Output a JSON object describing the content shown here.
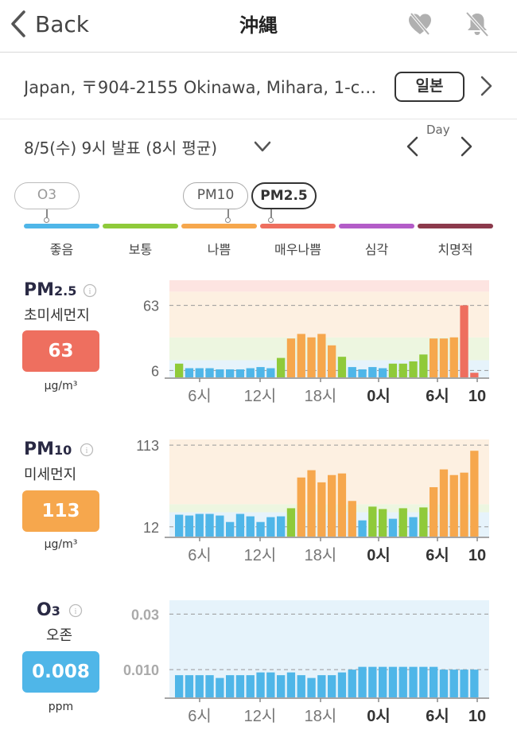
{
  "nav": {
    "back_label": "Back",
    "title": "沖縄",
    "favorite_icon": "heart-slash-icon",
    "notify_icon": "bell-slash-icon"
  },
  "address": {
    "text": "Japan, 〒904-2155 Okinawa, Mihara, 1-c…",
    "country_button": "일본"
  },
  "date": {
    "text": "8/5(수) 9시 발표 (8시 평균)",
    "mode": "Day"
  },
  "scale": {
    "pills": [
      "O3",
      "PM10",
      "PM2.5"
    ],
    "selected": "PM2.5",
    "levels": [
      {
        "label": "좋음",
        "color": "#4fb6e8"
      },
      {
        "label": "보통",
        "color": "#8fca3a"
      },
      {
        "label": "나쁨",
        "color": "#f6a74d"
      },
      {
        "label": "매우나쁨",
        "color": "#ee6f5f"
      },
      {
        "label": "심각",
        "color": "#b35cc8"
      },
      {
        "label": "치명적",
        "color": "#8c3a4c"
      }
    ]
  },
  "sections": [
    {
      "name": "PM",
      "name_sub": "2.5",
      "desc": "초미세먼지",
      "value": "63",
      "unit": "μg/m³",
      "badge_color": "#ee6f5f"
    },
    {
      "name": "PM",
      "name_sub": "10",
      "desc": "미세먼지",
      "value": "113",
      "unit": "μg/m³",
      "badge_color": "#f6a74d"
    },
    {
      "name": "O",
      "name_sub": "3",
      "desc": "오존",
      "value": "0.008",
      "unit": "ppm",
      "badge_color": "#4fb6e8"
    }
  ],
  "chart_data": [
    {
      "type": "bar",
      "title": "PM2.5 초미세먼지",
      "x_ticks": [
        "6시",
        "12시",
        "18시",
        "0시",
        "6시",
        "10"
      ],
      "y_labels": [
        "63",
        "6"
      ],
      "y_label_values": [
        63,
        6
      ],
      "values": [
        12,
        8,
        8,
        8,
        7,
        7,
        7,
        8,
        9,
        8,
        17,
        34,
        38,
        35,
        38,
        28,
        18,
        9,
        7,
        9,
        8,
        12,
        12,
        14,
        20,
        34,
        34,
        35,
        63,
        4
      ],
      "colors": [
        "#8fca3a",
        "#4fb6e8",
        "#4fb6e8",
        "#4fb6e8",
        "#4fb6e8",
        "#4fb6e8",
        "#4fb6e8",
        "#4fb6e8",
        "#4fb6e8",
        "#4fb6e8",
        "#8fca3a",
        "#f6a74d",
        "#f6a74d",
        "#f6a74d",
        "#f6a74d",
        "#f6a74d",
        "#8fca3a",
        "#4fb6e8",
        "#4fb6e8",
        "#4fb6e8",
        "#4fb6e8",
        "#8fca3a",
        "#8fca3a",
        "#8fca3a",
        "#8fca3a",
        "#f6a74d",
        "#f6a74d",
        "#f6a74d",
        "#ee6f5f",
        "#ee6f5f"
      ],
      "bands": [
        {
          "from": 0,
          "to": 15,
          "color": "#e6f3fb"
        },
        {
          "from": 15,
          "to": 35,
          "color": "#edf6e0"
        },
        {
          "from": 35,
          "to": 75,
          "color": "#fdf0e1"
        },
        {
          "from": 75,
          "to": 85,
          "color": "#fde4e1"
        }
      ],
      "ylim": [
        0,
        85
      ]
    },
    {
      "type": "bar",
      "title": "PM10 미세먼지",
      "x_ticks": [
        "6시",
        "12시",
        "18시",
        "0시",
        "6시",
        "10"
      ],
      "y_labels": [
        "113",
        "12"
      ],
      "y_label_values": [
        113,
        12
      ],
      "values": [
        27,
        26,
        28,
        28,
        26,
        18,
        28,
        25,
        18,
        24,
        25,
        35,
        73,
        82,
        67,
        76,
        78,
        44,
        20,
        37,
        34,
        22,
        35,
        24,
        36,
        61,
        83,
        76,
        79,
        106
      ],
      "colors": [
        "#4fb6e8",
        "#4fb6e8",
        "#4fb6e8",
        "#4fb6e8",
        "#4fb6e8",
        "#4fb6e8",
        "#4fb6e8",
        "#4fb6e8",
        "#4fb6e8",
        "#4fb6e8",
        "#4fb6e8",
        "#8fca3a",
        "#f6a74d",
        "#f6a74d",
        "#f6a74d",
        "#f6a74d",
        "#f6a74d",
        "#f6a74d",
        "#4fb6e8",
        "#8fca3a",
        "#8fca3a",
        "#4fb6e8",
        "#8fca3a",
        "#4fb6e8",
        "#8fca3a",
        "#f6a74d",
        "#f6a74d",
        "#f6a74d",
        "#f6a74d",
        "#f6a74d"
      ],
      "bands": [
        {
          "from": 0,
          "to": 30,
          "color": "#e6f3fb"
        },
        {
          "from": 30,
          "to": 40,
          "color": "#edf6e0"
        },
        {
          "from": 40,
          "to": 120,
          "color": "#fdf0e1"
        }
      ],
      "ylim": [
        0,
        120
      ]
    },
    {
      "type": "bar",
      "title": "O3 오존",
      "x_ticks": [
        "6시",
        "12시",
        "18시",
        "0시",
        "6시",
        "10"
      ],
      "y_labels": [
        "0.03",
        "0.010"
      ],
      "y_label_values": [
        0.03,
        0.01
      ],
      "values": [
        0.008,
        0.008,
        0.008,
        0.008,
        0.007,
        0.008,
        0.008,
        0.008,
        0.009,
        0.009,
        0.008,
        0.009,
        0.008,
        0.007,
        0.008,
        0.008,
        0.009,
        0.01,
        0.011,
        0.011,
        0.011,
        0.011,
        0.011,
        0.011,
        0.011,
        0.011,
        0.01,
        0.01,
        0.01,
        0.01
      ],
      "colors": [
        "#4fb6e8"
      ],
      "bands": [
        {
          "from": 0,
          "to": 0.035,
          "color": "#e6f3fb"
        }
      ],
      "ylim": [
        0,
        0.035
      ]
    }
  ]
}
